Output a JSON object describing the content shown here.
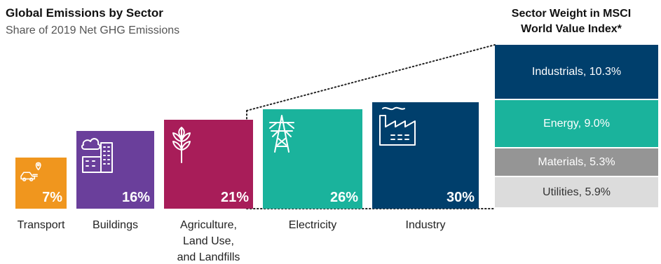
{
  "chart_data": [
    {
      "type": "bar",
      "title": "Global Emissions by Sector",
      "subtitle": "Share of 2019 Net GHG Emissions",
      "categories": [
        "Transport",
        "Buildings",
        "Agriculture, Land Use, and Landfills",
        "Electricity",
        "Industry"
      ],
      "label_lines": [
        [
          "Transport"
        ],
        [
          "Buildings"
        ],
        [
          "Agriculture,",
          "Land Use,",
          "and Landfills"
        ],
        [
          "Electricity"
        ],
        [
          "Industry"
        ]
      ],
      "values": [
        7,
        16,
        21,
        26,
        30
      ],
      "value_labels": [
        "7%",
        "16%",
        "21%",
        "26%",
        "30%"
      ],
      "colors": [
        "#f0961e",
        "#6a3f9b",
        "#a81d59",
        "#1ab39c",
        "#003f6c"
      ],
      "icons": [
        "car-pin-icon",
        "buildings-icon",
        "wheat-icon",
        "power-tower-icon",
        "factory-icon"
      ]
    },
    {
      "type": "bar",
      "title_lines": [
        "Sector Weight in MSCI",
        "World Value Index*"
      ],
      "categories": [
        "Industrials",
        "Energy",
        "Materials",
        "Utilities"
      ],
      "values": [
        10.3,
        9.0,
        5.3,
        5.9
      ],
      "labels": [
        "Industrials, 10.3%",
        "Energy, 9.0%",
        "Materials, 5.3%",
        "Utilities, 5.9%"
      ],
      "colors": [
        "#003f6c",
        "#1ab39c",
        "#959595",
        "#dcdcdc"
      ],
      "text_colors": [
        "#ffffff",
        "#ffffff",
        "#ffffff",
        "#333333"
      ]
    }
  ]
}
